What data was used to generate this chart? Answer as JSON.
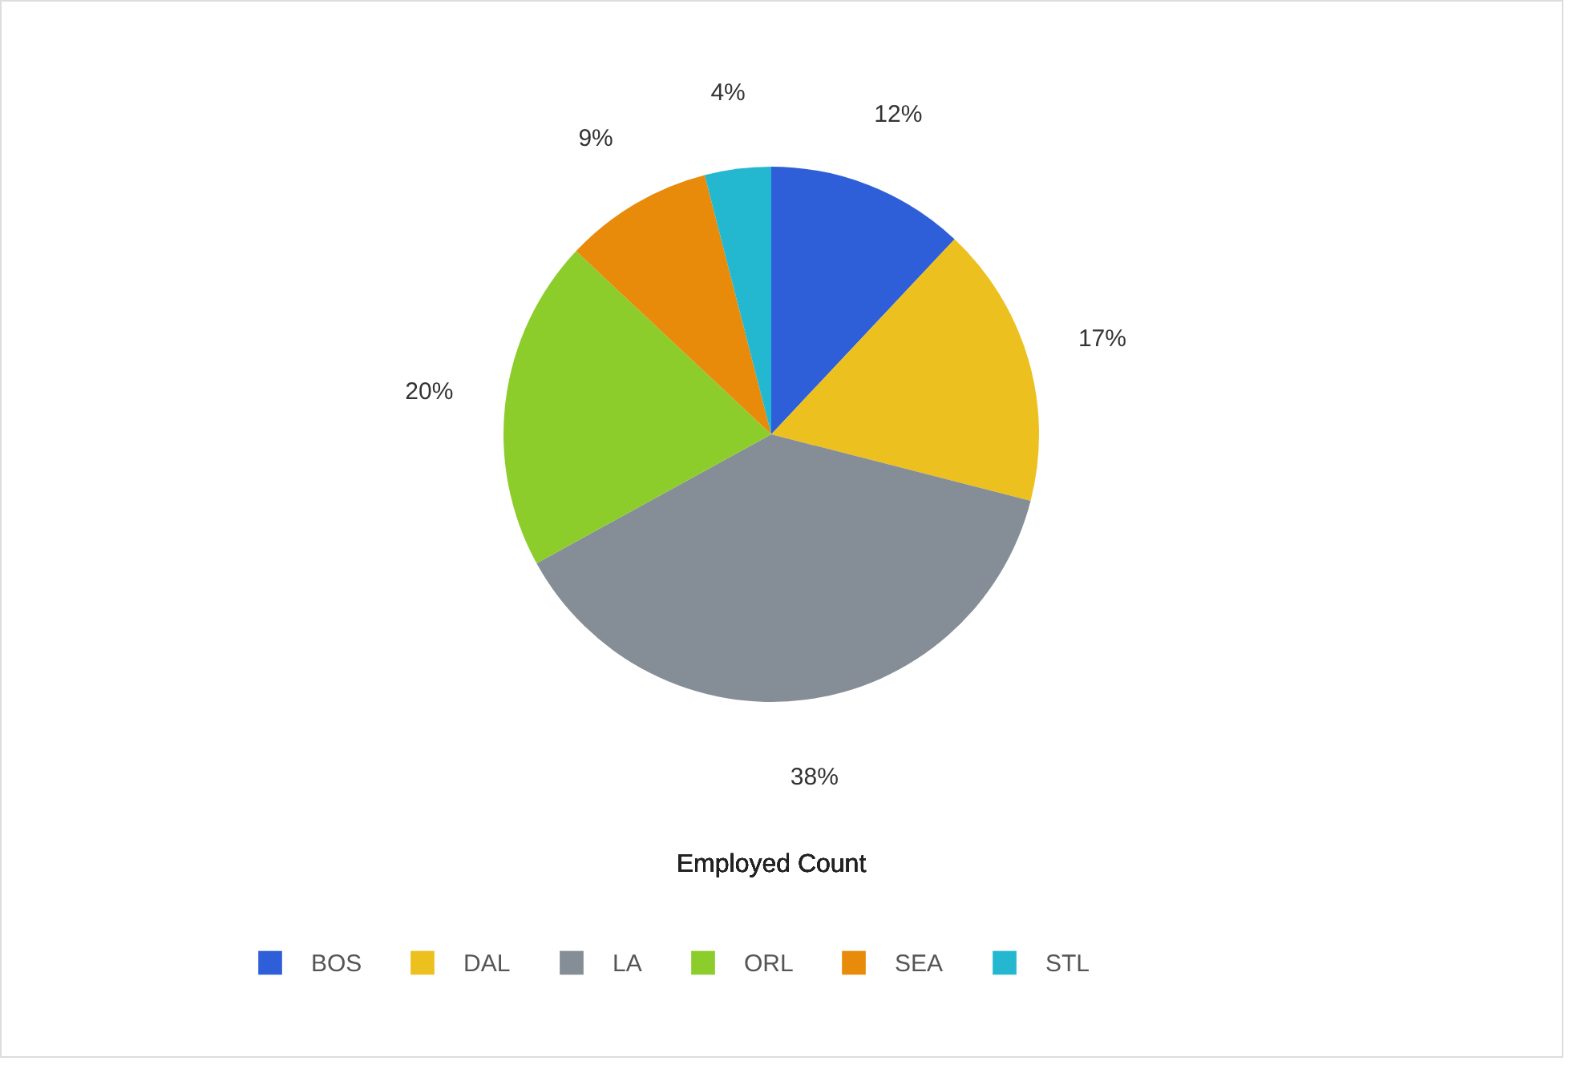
{
  "chart_data": {
    "type": "pie",
    "title": "Employed Count",
    "categories": [
      "BOS",
      "DAL",
      "LA",
      "ORL",
      "SEA",
      "STL"
    ],
    "values": [
      12,
      17,
      38,
      20,
      9,
      4
    ],
    "value_labels": [
      "12%",
      "17%",
      "38%",
      "20%",
      "9%",
      "4%"
    ],
    "colors": [
      "#2f5fd8",
      "#ecc01f",
      "#858d96",
      "#8ccd2b",
      "#e88a0a",
      "#23b8cf"
    ],
    "legend": "bottom"
  }
}
